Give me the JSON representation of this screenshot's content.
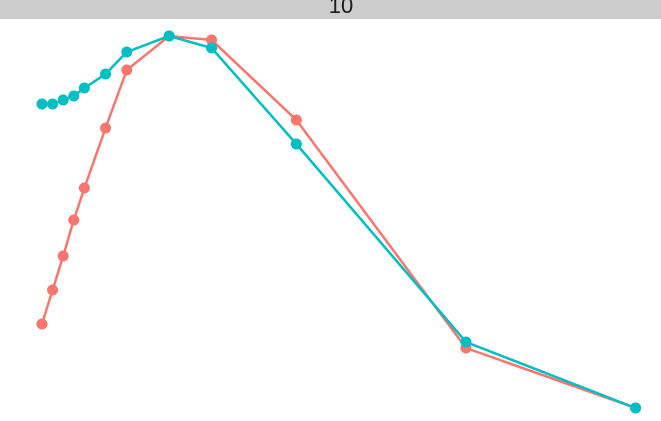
{
  "chart_data": {
    "type": "line",
    "facet_label": "10",
    "x": [
      0,
      1,
      2,
      3,
      4,
      6,
      8,
      12,
      16,
      24,
      40,
      56
    ],
    "series": [
      {
        "color": "#F8766D",
        "values": [
          24,
          32.5,
          41,
          50,
          58,
          73,
          87.5,
          96,
          95,
          75,
          18,
          3
        ]
      },
      {
        "color": "#00BFC4",
        "values": [
          79,
          79,
          80,
          81,
          83,
          86.5,
          92,
          96,
          93,
          69,
          19.5,
          3
        ]
      }
    ],
    "xlim": [
      -3.96,
      58.4
    ],
    "ylim": [
      0,
      100
    ]
  }
}
